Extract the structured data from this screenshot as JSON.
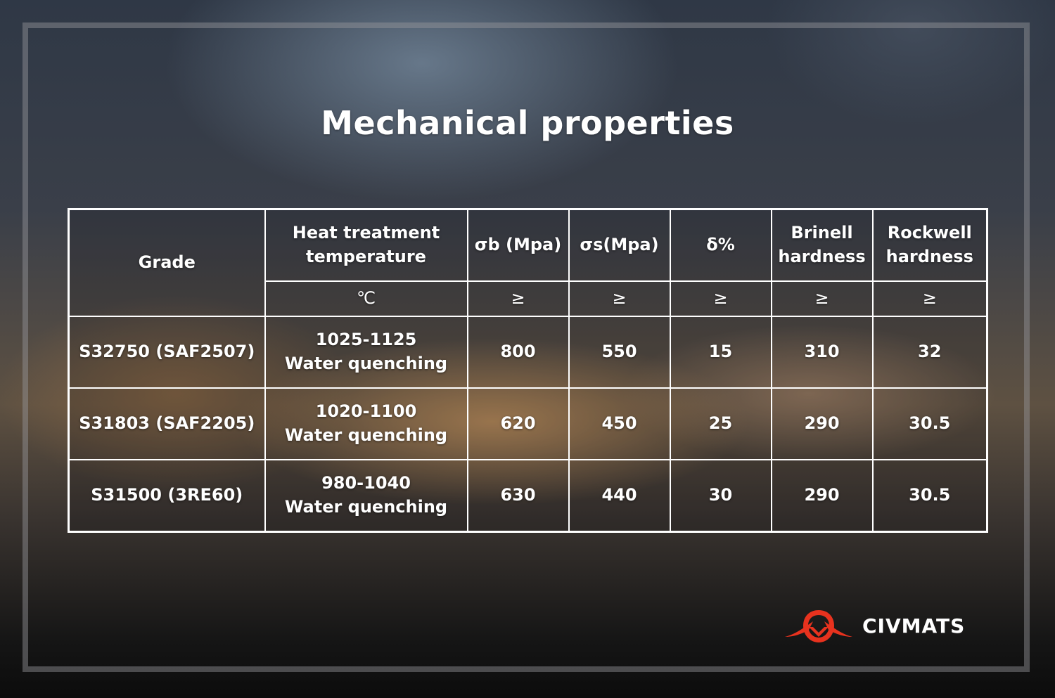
{
  "title": "Mechanical properties",
  "table": {
    "header": {
      "grade": "Grade",
      "heat_treatment": [
        "Heat treatment",
        "temperature"
      ],
      "sigma_b": "σb (Mpa)",
      "sigma_s": "σs(Mpa)",
      "delta": "δ%",
      "brinell": [
        "Brinell",
        "hardness"
      ],
      "rockwell": [
        "Rockwell",
        "hardness"
      ]
    },
    "units": {
      "heat_treatment": "℃",
      "sigma_b": "≥",
      "sigma_s": "≥",
      "delta": "≥",
      "brinell": "≥",
      "rockwell": "≥"
    },
    "rows": [
      {
        "grade": "S32750 (SAF2507)",
        "temp": "1025-1125",
        "method": "Water quenching",
        "sigma_b": "800",
        "sigma_s": "550",
        "delta": "15",
        "brinell": "310",
        "rockwell": "32"
      },
      {
        "grade": "S31803 (SAF2205)",
        "temp": "1020-1100",
        "method": "Water quenching",
        "sigma_b": "620",
        "sigma_s": "450",
        "delta": "25",
        "brinell": "290",
        "rockwell": "30.5"
      },
      {
        "grade": "S31500 (3RE60)",
        "temp": "980-1040",
        "method": "Water quenching",
        "sigma_b": "630",
        "sigma_s": "440",
        "delta": "30",
        "brinell": "290",
        "rockwell": "30.5"
      }
    ]
  },
  "logo": {
    "text": "CIVMATS",
    "icon": "civmats-logo-icon",
    "color": "#e8321e"
  }
}
